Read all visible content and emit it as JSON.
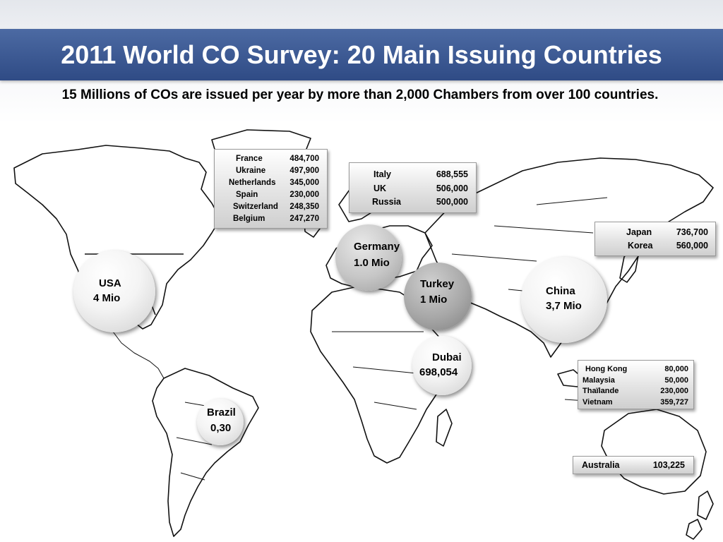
{
  "slide": {
    "title": "2011 World CO Survey: 20 Main Issuing Countries",
    "subtitle": "15 Millions of COs are issued per year by more than 2,000 Chambers from over 100 countries."
  },
  "europe_box": [
    {
      "country": "France",
      "value": "484,700"
    },
    {
      "country": "Ukraine",
      "value": "497,900"
    },
    {
      "country": "Netherlands",
      "value": "345,000"
    },
    {
      "country": "Spain",
      "value": "230,000"
    },
    {
      "country": "Switzerland",
      "value": "248,350"
    },
    {
      "country": "Belgium",
      "value": "247,270"
    }
  ],
  "italy_box": [
    {
      "country": "Italy",
      "value": "688,555"
    },
    {
      "country": "UK",
      "value": "506,000"
    },
    {
      "country": "Russia",
      "value": "500,000"
    }
  ],
  "japan_box": [
    {
      "country": "Japan",
      "value": "736,700"
    },
    {
      "country": "Korea",
      "value": "560,000"
    }
  ],
  "asia_box": [
    {
      "country": "Hong Kong",
      "value": "80,000"
    },
    {
      "country": "Malaysia",
      "value": "50,000"
    },
    {
      "country": "Thaïlande",
      "value": "230,000"
    },
    {
      "country": "Vietnam",
      "value": "359,727"
    }
  ],
  "australia_box": [
    {
      "country": "Australia",
      "value": "103,225"
    }
  ],
  "bubbles": {
    "usa": {
      "name": "USA",
      "value": "4 Mio"
    },
    "germany": {
      "name": "Germany",
      "value": "1.0 Mio"
    },
    "turkey": {
      "name": "Turkey",
      "value": "1 Mio"
    },
    "china": {
      "name": "China",
      "value": "3,7 Mio"
    },
    "dubai": {
      "name": "Dubai",
      "value": "698,054"
    },
    "brazil": {
      "name": "Brazil",
      "value": "0,30"
    }
  }
}
